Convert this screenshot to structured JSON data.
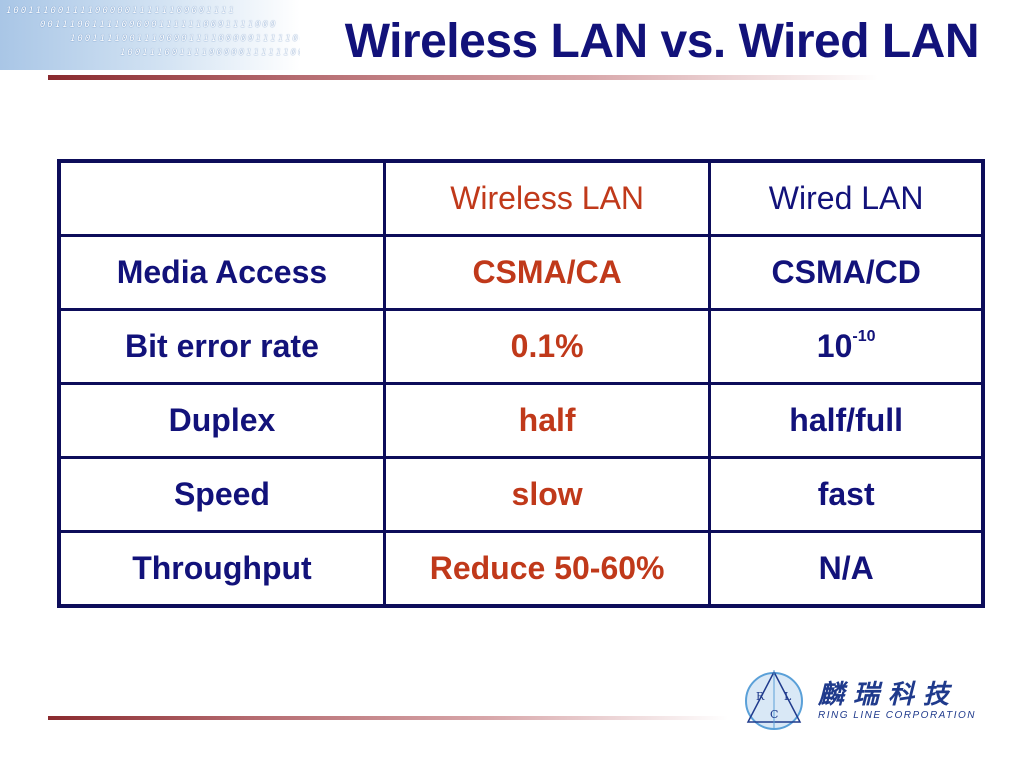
{
  "slide": {
    "title": "Wireless LAN vs. Wired LAN",
    "binary_rows": [
      "1001110011110000011111100001111",
      "00111001111000001111110001111000",
      "10011110011100001111000001111100",
      "1001110011110000011111100"
    ]
  },
  "table": {
    "headers": [
      "",
      "Wireless LAN",
      "Wired LAN"
    ],
    "rows": [
      {
        "label": "Media Access",
        "wireless": "CSMA/CA",
        "wired": "CSMA/CD"
      },
      {
        "label": "Bit error rate",
        "wireless": "0.1%",
        "wired_base": "10",
        "wired_exp": "-10"
      },
      {
        "label": "Duplex",
        "wireless": "half",
        "wired": "half/full"
      },
      {
        "label": "Speed",
        "wireless": "slow",
        "wired": "fast"
      },
      {
        "label": "Throughput",
        "wireless": "Reduce 50-60%",
        "wired": "N/A"
      }
    ]
  },
  "logo": {
    "badge_letters": [
      "R",
      "L",
      "C"
    ],
    "chinese_name": "麟瑞科技",
    "english_name": "RING LINE CORPORATION",
    "colors": {
      "primary": "#1f3a8c",
      "accent": "#5aa0d8"
    }
  },
  "colors": {
    "title": "#12127a",
    "wireless": "#c0391a",
    "border": "#0d0d5a",
    "rule": "#8a2a2e"
  }
}
